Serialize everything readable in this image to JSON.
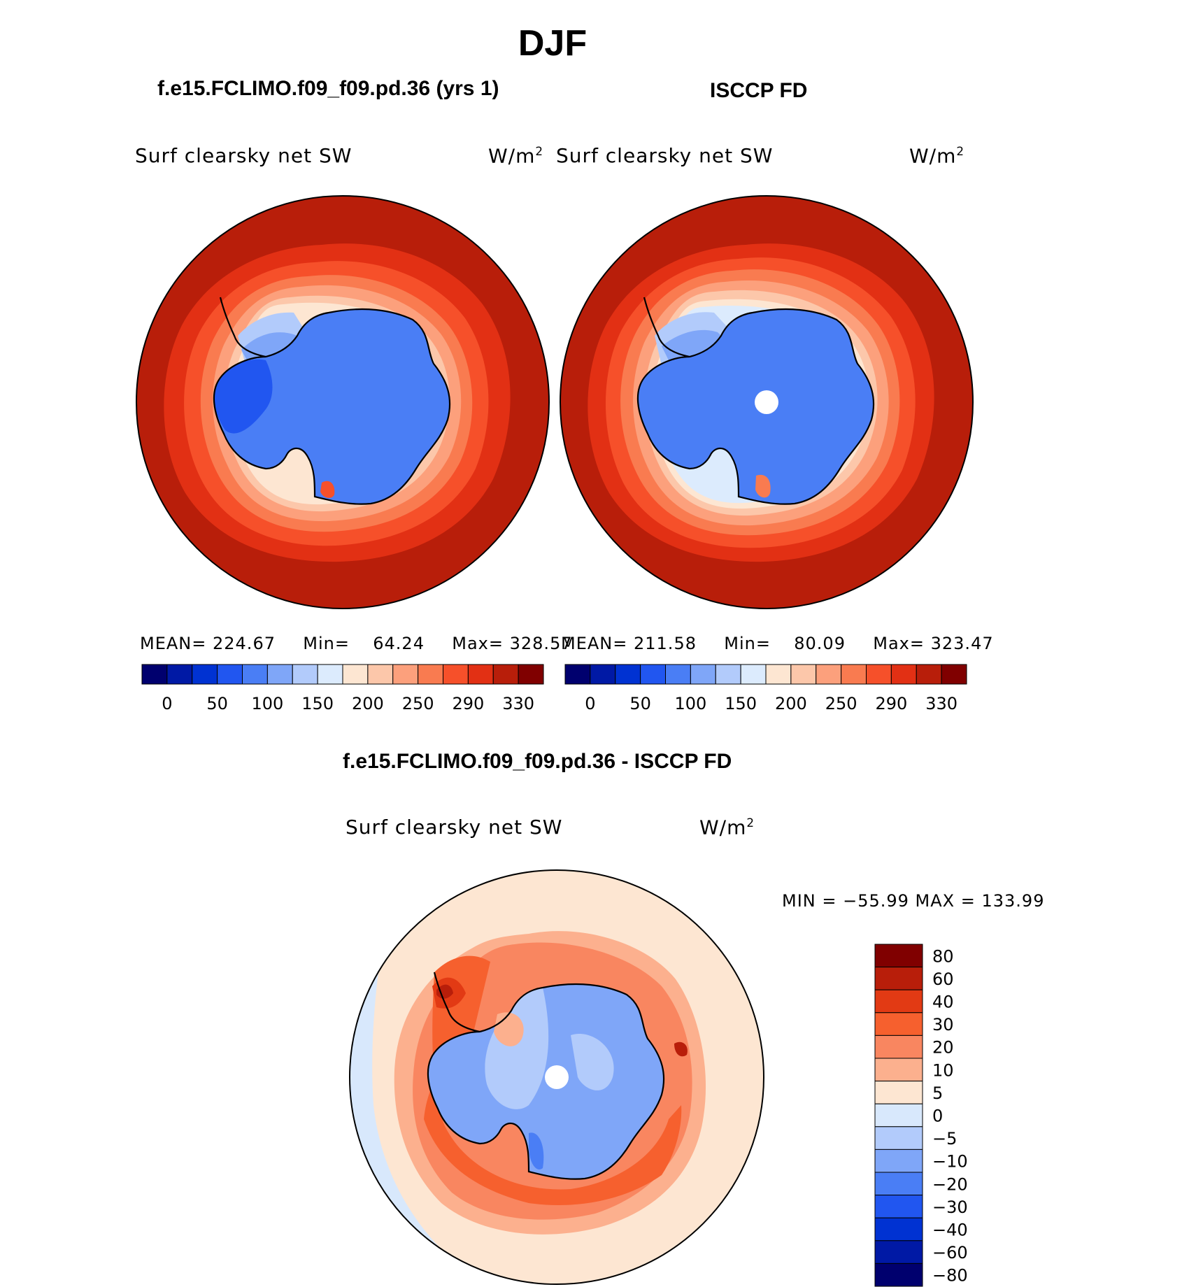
{
  "season": "DJF",
  "colors": {
    "seq": [
      "#00006e",
      "#0019a5",
      "#0032d2",
      "#2156f0",
      "#4a7ef5",
      "#7fa6f8",
      "#b2cbfb",
      "#dcebfd",
      "#fde6d2",
      "#fcc7aa",
      "#fca07c",
      "#f97b50",
      "#f6502a",
      "#e23014",
      "#b81e0a",
      "#800000"
    ],
    "diff": [
      "#00006e",
      "#0019a5",
      "#0032d2",
      "#2156f0",
      "#4a7ef5",
      "#7fa6f8",
      "#b2cbfb",
      "#d8e8fc",
      "#fde6d2",
      "#fcb08e",
      "#f98660",
      "#f6602e",
      "#e23a14",
      "#b81e0a",
      "#800000"
    ]
  },
  "panels": {
    "left": {
      "case_title": "f.e15.FCLIMO.f09_f09.pd.36 (yrs 1)",
      "variable": "Surf clearsky net SW",
      "units_base": "W/m",
      "units_exp": "2",
      "stats": {
        "mean_label": "MEAN=",
        "mean": "224.67",
        "min_label": "Min=",
        "min": "64.24",
        "max_label": "Max=",
        "max": "328.57"
      }
    },
    "right": {
      "case_title": "ISCCP FD",
      "variable": "Surf clearsky net SW",
      "units_base": "W/m",
      "units_exp": "2",
      "stats": {
        "mean_label": "MEAN=",
        "mean": "211.58",
        "min_label": "Min=",
        "min": "80.09",
        "max_label": "Max=",
        "max": "323.47"
      }
    },
    "diff": {
      "case_title": "f.e15.FCLIMO.f09_f09.pd.36 - ISCCP FD",
      "variable": "Surf clearsky net SW",
      "units_base": "W/m",
      "units_exp": "2",
      "minmax_text": "MIN = −55.99 MAX = 133.99"
    }
  },
  "chart_data": [
    {
      "type": "heatmap",
      "projection": "south polar stereographic",
      "title": "f.e15.FCLIMO.f09_f09.pd.36 (yrs 1)",
      "subtitle": "Surf clearsky net SW (W/m2)",
      "stats": {
        "mean": 224.67,
        "min": 64.24,
        "max": 328.57
      },
      "colorbar_ticks": [
        "0",
        "50",
        "100",
        "150",
        "200",
        "250",
        "290",
        "330"
      ]
    },
    {
      "type": "heatmap",
      "projection": "south polar stereographic",
      "title": "ISCCP FD",
      "subtitle": "Surf clearsky net SW (W/m2)",
      "stats": {
        "mean": 211.58,
        "min": 80.09,
        "max": 323.47
      },
      "colorbar_ticks": [
        "0",
        "50",
        "100",
        "150",
        "200",
        "250",
        "290",
        "330"
      ]
    },
    {
      "type": "heatmap",
      "projection": "south polar stereographic",
      "title": "f.e15.FCLIMO.f09_f09.pd.36 - ISCCP FD",
      "subtitle": "Surf clearsky net SW (W/m2)",
      "stats": {
        "min": -55.99,
        "max": 133.99
      },
      "colorbar_ticks": [
        "80",
        "60",
        "40",
        "30",
        "20",
        "10",
        "5",
        "0",
        "−5",
        "−10",
        "−20",
        "−30",
        "−40",
        "−60",
        "−80"
      ]
    }
  ]
}
